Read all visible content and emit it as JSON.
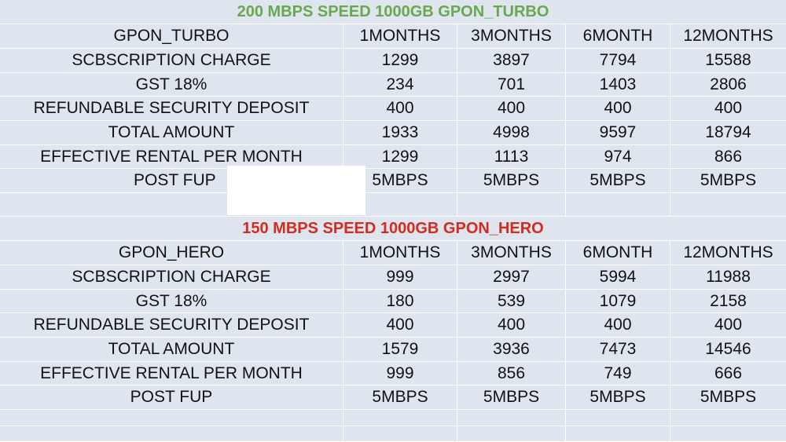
{
  "plans": [
    {
      "title": "200 MBPS SPEED 1000GB GPON_TURBO",
      "title_color": "#6aa84f",
      "header": [
        "GPON_TURBO",
        "1MONTHS",
        "3MONTHS",
        "6MONTH",
        "12MONTHS"
      ],
      "rows": [
        [
          "SCBSCRIPTION CHARGE",
          "1299",
          "3897",
          "7794",
          "15588"
        ],
        [
          "GST 18%",
          "234",
          "701",
          "1403",
          "2806"
        ],
        [
          "REFUNDABLE SECURITY DEPOSIT",
          "400",
          "400",
          "400",
          "400"
        ],
        [
          "TOTAL  AMOUNT",
          "1933",
          "4998",
          "9597",
          "18794"
        ],
        [
          "EFFECTIVE RENTAL PER MONTH",
          "1299",
          "1113",
          "974",
          "866"
        ],
        [
          "POST FUP",
          "5MBPS",
          "5MBPS",
          "5MBPS",
          "5MBPS"
        ]
      ]
    },
    {
      "title": "150 MBPS SPEED 1000GB GPON_HERO",
      "title_color": "#d52b1e",
      "header": [
        "GPON_HERO",
        "1MONTHS",
        "3MONTHS",
        "6MONTH",
        "12MONTHS"
      ],
      "rows": [
        [
          "SCBSCRIPTION CHARGE",
          "999",
          "2997",
          "5994",
          "11988"
        ],
        [
          "GST 18%",
          "180",
          "539",
          "1079",
          "2158"
        ],
        [
          "REFUNDABLE SECURITY DEPOSIT",
          "400",
          "400",
          "400",
          "400"
        ],
        [
          "TOTAL  AMOUNT",
          "1579",
          "3936",
          "7473",
          "14546"
        ],
        [
          "EFFECTIVE RENTAL PER MONTH",
          "999",
          "856",
          "749",
          "666"
        ],
        [
          "POST FUP",
          "5MBPS",
          "5MBPS",
          "5MBPS",
          "5MBPS"
        ]
      ]
    }
  ]
}
